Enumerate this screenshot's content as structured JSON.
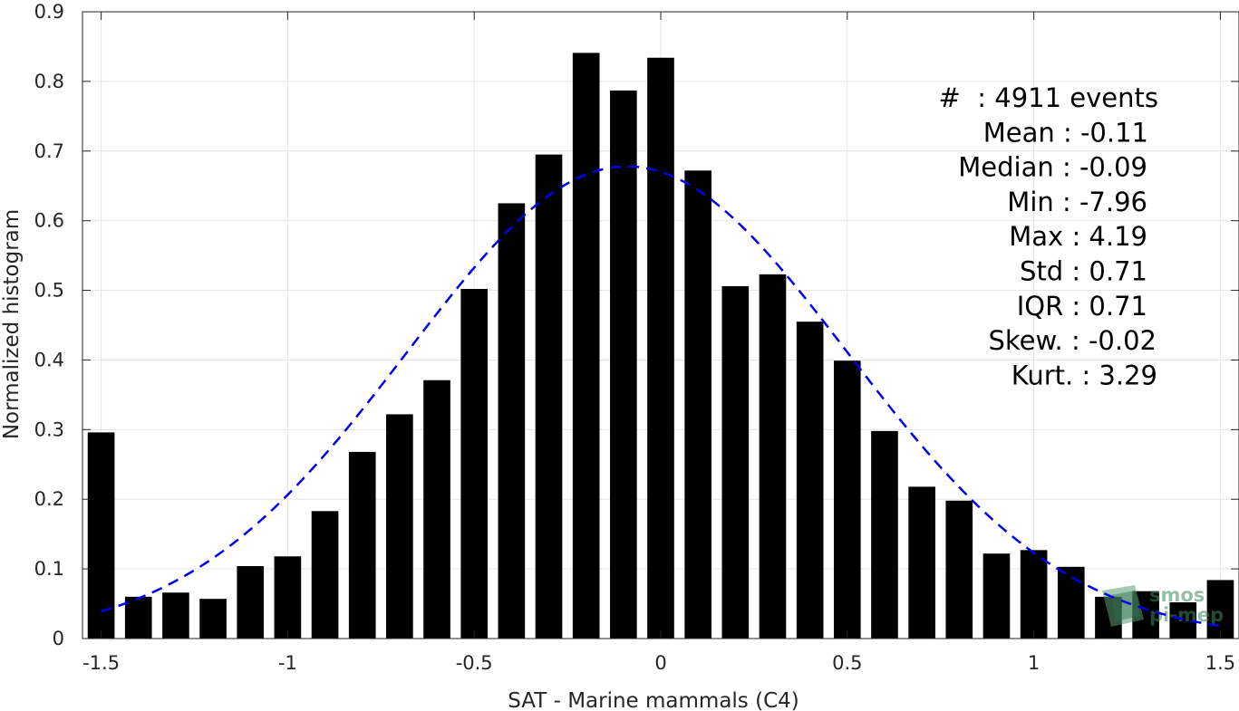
{
  "chart_data": {
    "type": "bar",
    "title": "",
    "xlabel": "SAT - Marine mammals (C4)",
    "ylabel": "Normalized histogram",
    "xlim": [
      -1.55,
      1.55
    ],
    "ylim": [
      0,
      0.9
    ],
    "xticks": [
      -1.5,
      -1,
      -0.5,
      0,
      0.5,
      1,
      1.5
    ],
    "xtick_labels": [
      "-1.5",
      "-1",
      "-0.5",
      "0",
      "0.5",
      "1",
      "1.5"
    ],
    "yticks": [
      0,
      0.1,
      0.2,
      0.3,
      0.4,
      0.5,
      0.6,
      0.7,
      0.8,
      0.9
    ],
    "ytick_labels": [
      "0",
      "0.1",
      "0.2",
      "0.3",
      "0.4",
      "0.5",
      "0.6",
      "0.7",
      "0.8",
      "0.9"
    ],
    "grid": true,
    "bar_color": "#000000",
    "bin_width": 0.1,
    "x": [
      -1.5,
      -1.4,
      -1.3,
      -1.2,
      -1.1,
      -1.0,
      -0.9,
      -0.8,
      -0.7,
      -0.6,
      -0.5,
      -0.4,
      -0.3,
      -0.2,
      -0.1,
      0.0,
      0.1,
      0.2,
      0.3,
      0.4,
      0.5,
      0.6,
      0.7,
      0.8,
      0.9,
      1.0,
      1.1,
      1.2,
      1.3,
      1.4,
      1.5
    ],
    "values": [
      0.296,
      0.06,
      0.066,
      0.057,
      0.104,
      0.118,
      0.183,
      0.268,
      0.322,
      0.371,
      0.502,
      0.625,
      0.695,
      0.841,
      0.787,
      0.834,
      0.672,
      0.506,
      0.523,
      0.455,
      0.399,
      0.298,
      0.218,
      0.198,
      0.122,
      0.127,
      0.103,
      0.06,
      0.068,
      0.052,
      0.084
    ],
    "fit_curve": {
      "type": "normal",
      "mean": -0.09,
      "std": 0.59,
      "peak": 0.678,
      "color": "#0000ee",
      "style": "dashed"
    },
    "annotations": [
      "#  : 4911 events",
      "Mean : -0.11",
      "Median : -0.09",
      "Min : -7.96",
      "Max : 4.19",
      "Std : 0.71",
      "IQR : 0.71",
      "Skew. : -0.02",
      "Kurt. : 3.29"
    ]
  },
  "watermark": {
    "line1": "smos",
    "line2": "pi-mep"
  }
}
